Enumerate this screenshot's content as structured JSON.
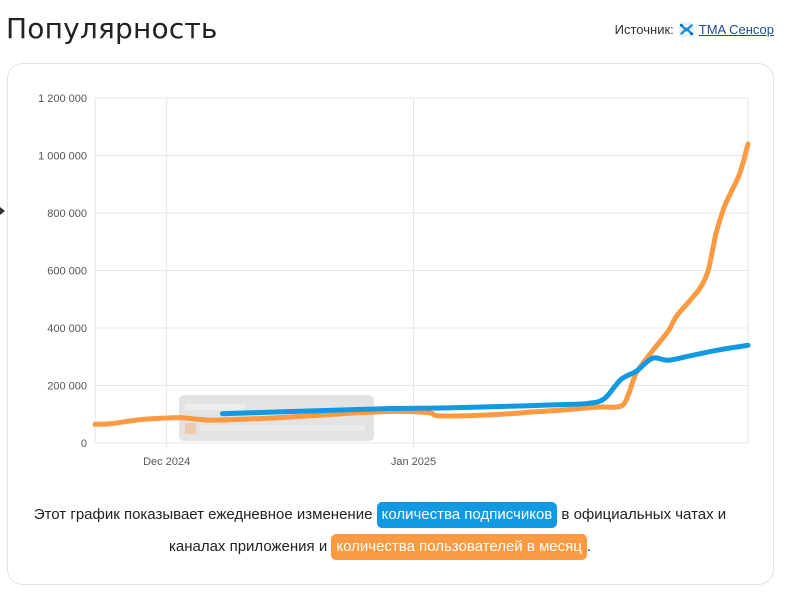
{
  "header": {
    "title": "Популярность",
    "source_label": "Источник:",
    "source_link": "TMA Сенсор",
    "source_icon": "tma-sensor-logo-icon"
  },
  "colors": {
    "subscribers": "#1199e3",
    "mau": "#fb9a41",
    "grid": "#e6e6e6",
    "tooltip_bg": "#d9d9d9"
  },
  "chart_data": {
    "type": "line",
    "x_ticks": [
      "Dec 2024",
      "Jan 2025"
    ],
    "y_ticks": [
      "0",
      "200 000",
      "400 000",
      "600 000",
      "800 000",
      "1 000 000",
      "1 200 000"
    ],
    "ylim": [
      0,
      1200000
    ],
    "xlim": [
      "2024-11-22",
      "2025-02-12"
    ],
    "grid": true,
    "series": [
      {
        "name": "количества подписчиков",
        "color": "#1199e3",
        "points": [
          [
            "2024-12-08",
            102000
          ],
          [
            "2024-12-15",
            108000
          ],
          [
            "2024-12-22",
            114000
          ],
          [
            "2024-12-29",
            120000
          ],
          [
            "2025-01-05",
            122000
          ],
          [
            "2025-01-12",
            127000
          ],
          [
            "2025-01-19",
            133000
          ],
          [
            "2025-01-23",
            138000
          ],
          [
            "2025-01-25",
            155000
          ],
          [
            "2025-01-27",
            220000
          ],
          [
            "2025-01-29",
            250000
          ],
          [
            "2025-01-31",
            295000
          ],
          [
            "2025-02-02",
            288000
          ],
          [
            "2025-02-05",
            305000
          ],
          [
            "2025-02-08",
            322000
          ],
          [
            "2025-02-12",
            340000
          ]
        ]
      },
      {
        "name": "количества пользователей в месяц",
        "color": "#fb9a41",
        "points": [
          [
            "2024-11-22",
            65000
          ],
          [
            "2024-11-24",
            67000
          ],
          [
            "2024-11-26",
            75000
          ],
          [
            "2024-11-28",
            82000
          ],
          [
            "2024-12-01",
            87000
          ],
          [
            "2024-12-03",
            88000
          ],
          [
            "2024-12-06",
            80000
          ],
          [
            "2024-12-10",
            82000
          ],
          [
            "2024-12-15",
            88000
          ],
          [
            "2024-12-20",
            96000
          ],
          [
            "2024-12-25",
            105000
          ],
          [
            "2024-12-30",
            110000
          ],
          [
            "2025-01-03",
            105000
          ],
          [
            "2025-01-04",
            95000
          ],
          [
            "2025-01-08",
            95000
          ],
          [
            "2025-01-12",
            100000
          ],
          [
            "2025-01-16",
            108000
          ],
          [
            "2025-01-20",
            115000
          ],
          [
            "2025-01-24",
            125000
          ],
          [
            "2025-01-27",
            128000
          ],
          [
            "2025-01-28",
            170000
          ],
          [
            "2025-01-29",
            245000
          ],
          [
            "2025-01-31",
            320000
          ],
          [
            "2025-02-02",
            390000
          ],
          [
            "2025-02-03",
            440000
          ],
          [
            "2025-02-05",
            505000
          ],
          [
            "2025-02-06",
            540000
          ],
          [
            "2025-02-07",
            600000
          ],
          [
            "2025-02-08",
            730000
          ],
          [
            "2025-02-09",
            820000
          ],
          [
            "2025-02-10",
            880000
          ],
          [
            "2025-02-11",
            940000
          ],
          [
            "2025-02-12",
            1040000
          ]
        ]
      }
    ]
  },
  "caption": {
    "part1": "Этот график показывает ежедневное изменение ",
    "link_subscribers": "количества подписчиков",
    "part2": " в официальных чатах и каналах приложения и ",
    "link_mau": "количества пользователей в месяц",
    "part3": "."
  }
}
